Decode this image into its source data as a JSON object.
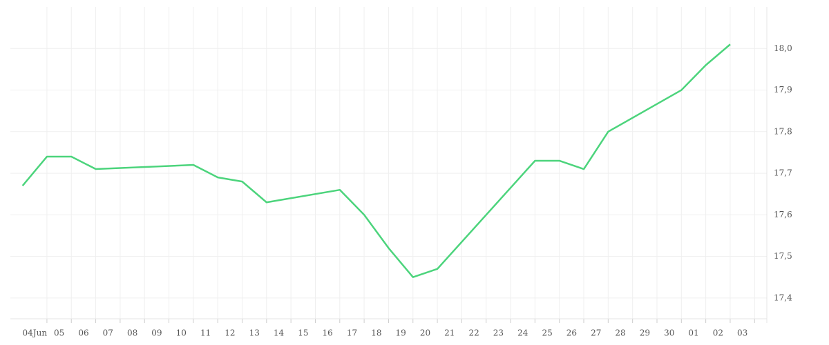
{
  "chart_data": {
    "type": "line",
    "x": [
      3.5,
      4.5,
      5.5,
      6.5,
      10.5,
      11.5,
      12.5,
      13.5,
      16.5,
      17.5,
      18.5,
      19.5,
      20.5,
      24.5,
      25.5,
      26.5,
      27.5,
      30.5,
      31.5,
      32.5
    ],
    "series": [
      {
        "color": "#4cd47c",
        "values": [
          17.67,
          17.74,
          17.74,
          17.71,
          17.72,
          17.69,
          17.68,
          17.63,
          17.66,
          17.6,
          17.52,
          17.45,
          17.47,
          17.73,
          17.73,
          17.71,
          17.8,
          17.9,
          17.96,
          18.01
        ]
      }
    ],
    "xlim": [
      3,
      34
    ],
    "xticks": [
      {
        "value": 4,
        "label": "04Jun"
      },
      {
        "value": 5,
        "label": "05"
      },
      {
        "value": 6,
        "label": "06"
      },
      {
        "value": 7,
        "label": "07"
      },
      {
        "value": 8,
        "label": "08"
      },
      {
        "value": 9,
        "label": "09"
      },
      10,
      11,
      12,
      13,
      14,
      15,
      16,
      17,
      18,
      19,
      20,
      21,
      22,
      23,
      24,
      25,
      26,
      27,
      28,
      29,
      30,
      {
        "value": 31,
        "label": "01"
      },
      {
        "value": 32,
        "label": "02"
      },
      {
        "value": 33,
        "label": "03"
      }
    ],
    "ylim": [
      17.35,
      18.1
    ],
    "yticks": [
      {
        "value": 17.4,
        "label": "17,4"
      },
      {
        "value": 17.5,
        "label": "17,5"
      },
      {
        "value": 17.6,
        "label": "17,6"
      },
      {
        "value": 17.7,
        "label": "17,7"
      },
      {
        "value": 17.8,
        "label": "17,8"
      },
      {
        "value": 17.9,
        "label": "17,9"
      },
      {
        "value": 18.0,
        "label": "18,0"
      }
    ],
    "grid": true
  }
}
